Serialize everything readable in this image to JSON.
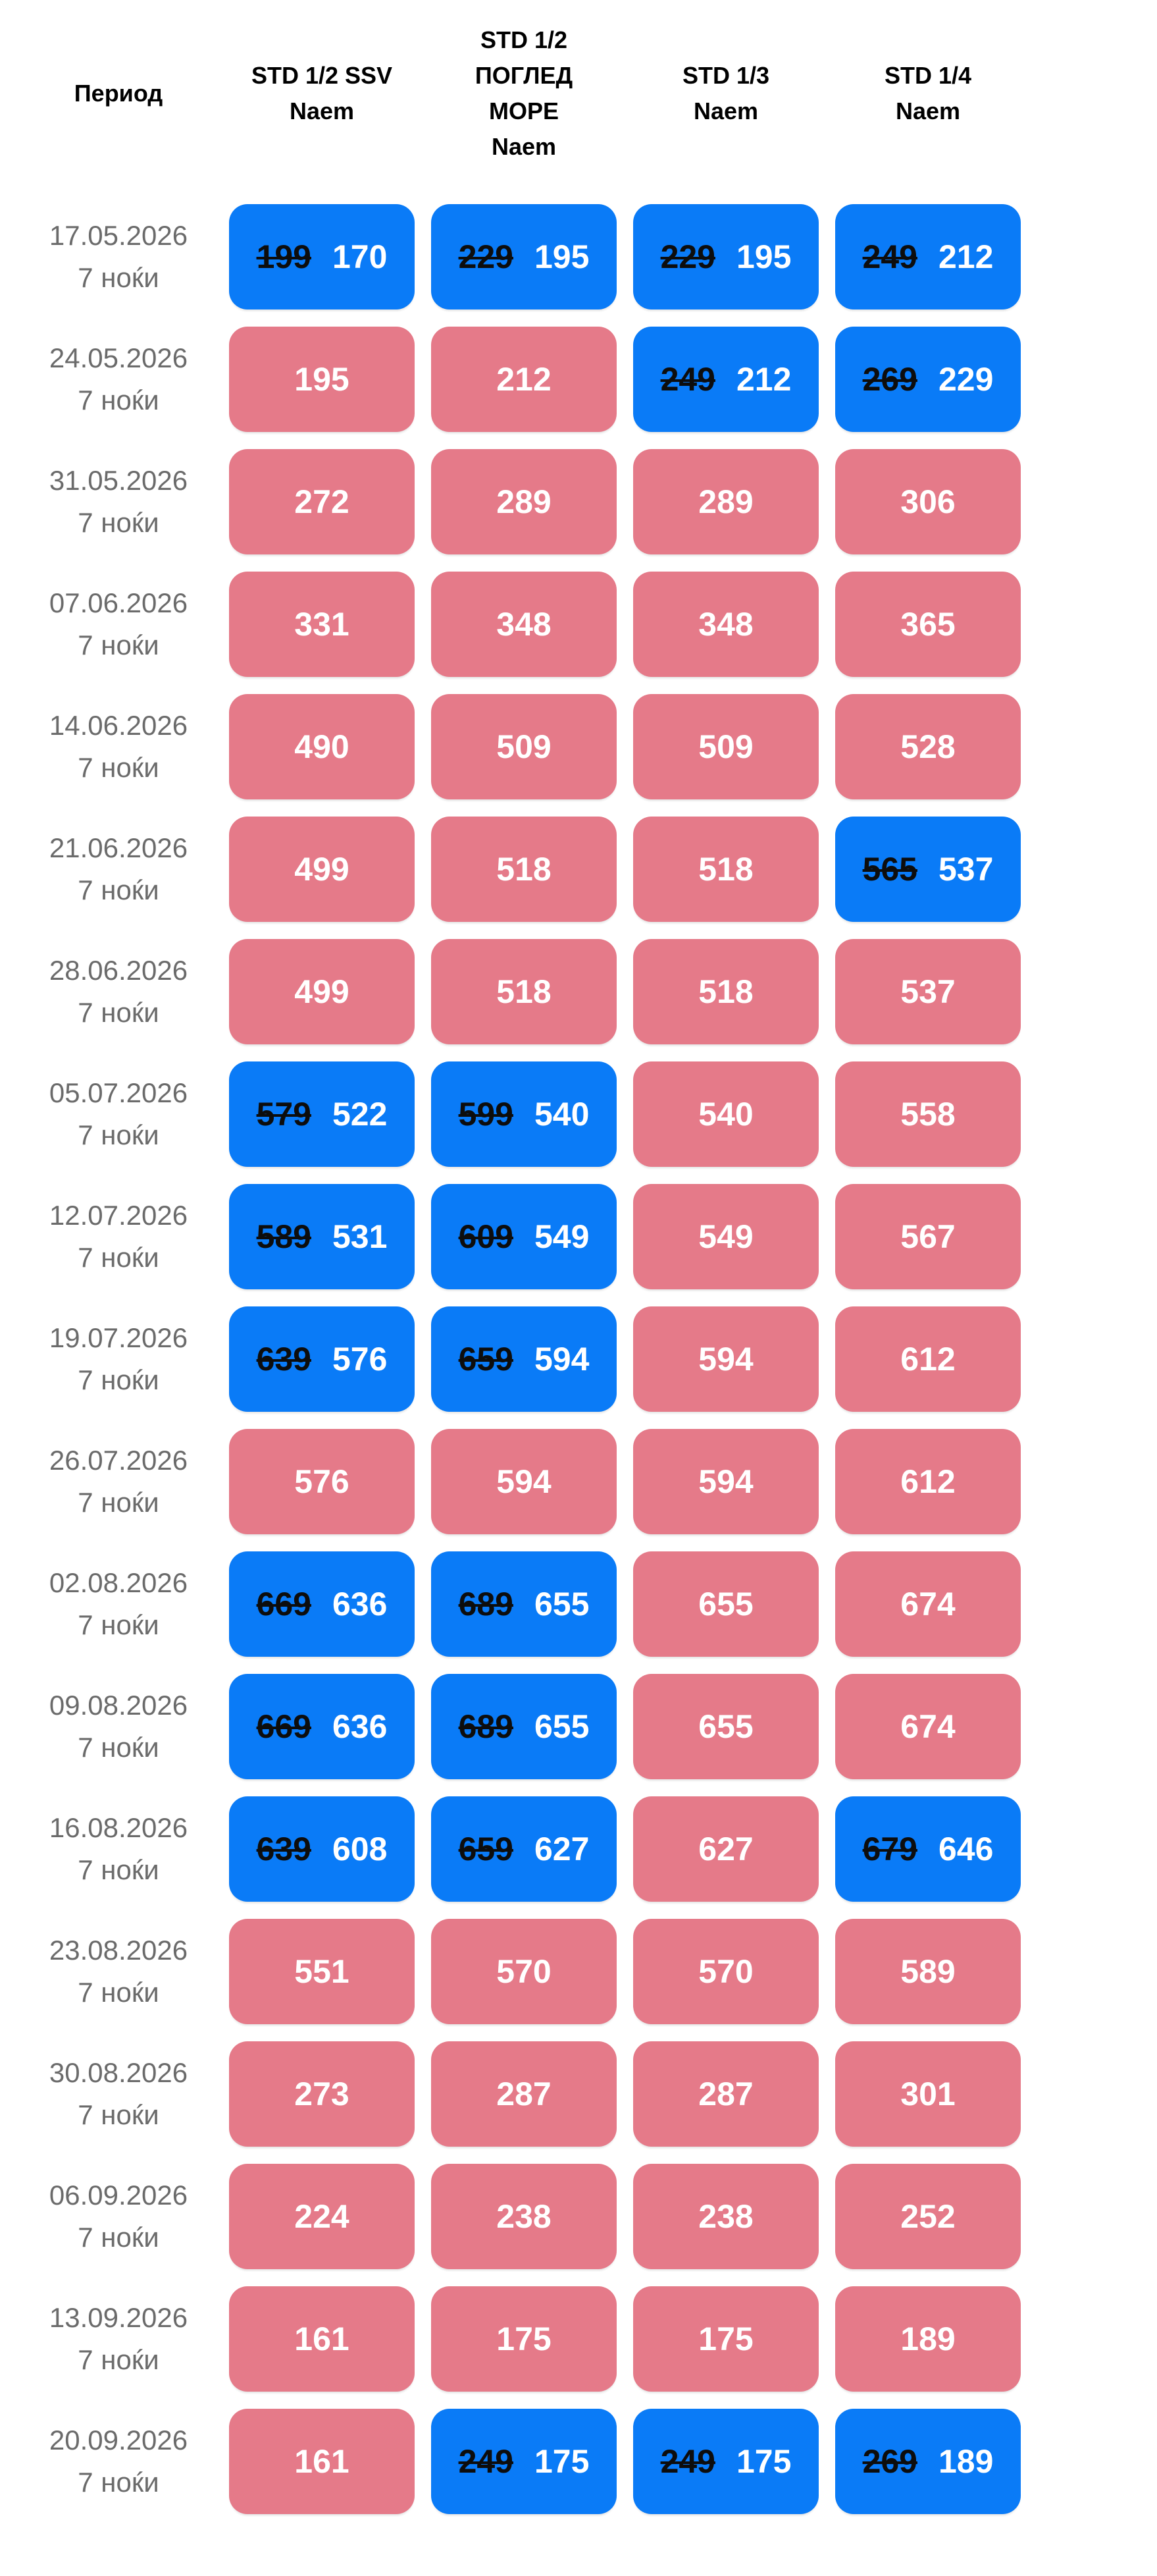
{
  "colors": {
    "promo_cell_bg": "#0a7bf7",
    "regular_cell_bg": "#e57a89",
    "price_text": "#ffffff",
    "old_price_text": "#0d0d0d",
    "date_text": "#6b6b6b",
    "header_text": "#000000",
    "page_bg": "#ffffff"
  },
  "header": {
    "period_label": "Период",
    "columns": [
      "STD 1/2 SSV\nNaem",
      "STD 1/2\nПОГЛЕД\nМОРЕ\nNaem",
      "STD 1/3\nNaem",
      "STD 1/4\nNaem"
    ]
  },
  "rows": [
    {
      "date": "17.05.2026",
      "nights": "7 ноќи",
      "cells": [
        {
          "old": 199,
          "price": 170
        },
        {
          "old": 229,
          "price": 195
        },
        {
          "old": 229,
          "price": 195
        },
        {
          "old": 249,
          "price": 212
        }
      ]
    },
    {
      "date": "24.05.2026",
      "nights": "7 ноќи",
      "cells": [
        {
          "price": 195
        },
        {
          "price": 212
        },
        {
          "old": 249,
          "price": 212
        },
        {
          "old": 269,
          "price": 229
        }
      ]
    },
    {
      "date": "31.05.2026",
      "nights": "7 ноќи",
      "cells": [
        {
          "price": 272
        },
        {
          "price": 289
        },
        {
          "price": 289
        },
        {
          "price": 306
        }
      ]
    },
    {
      "date": "07.06.2026",
      "nights": "7 ноќи",
      "cells": [
        {
          "price": 331
        },
        {
          "price": 348
        },
        {
          "price": 348
        },
        {
          "price": 365
        }
      ]
    },
    {
      "date": "14.06.2026",
      "nights": "7 ноќи",
      "cells": [
        {
          "price": 490
        },
        {
          "price": 509
        },
        {
          "price": 509
        },
        {
          "price": 528
        }
      ]
    },
    {
      "date": "21.06.2026",
      "nights": "7 ноќи",
      "cells": [
        {
          "price": 499
        },
        {
          "price": 518
        },
        {
          "price": 518
        },
        {
          "old": 565,
          "price": 537
        }
      ]
    },
    {
      "date": "28.06.2026",
      "nights": "7 ноќи",
      "cells": [
        {
          "price": 499
        },
        {
          "price": 518
        },
        {
          "price": 518
        },
        {
          "price": 537
        }
      ]
    },
    {
      "date": "05.07.2026",
      "nights": "7 ноќи",
      "cells": [
        {
          "old": 579,
          "price": 522
        },
        {
          "old": 599,
          "price": 540
        },
        {
          "price": 540
        },
        {
          "price": 558
        }
      ]
    },
    {
      "date": "12.07.2026",
      "nights": "7 ноќи",
      "cells": [
        {
          "old": 589,
          "price": 531
        },
        {
          "old": 609,
          "price": 549
        },
        {
          "price": 549
        },
        {
          "price": 567
        }
      ]
    },
    {
      "date": "19.07.2026",
      "nights": "7 ноќи",
      "cells": [
        {
          "old": 639,
          "price": 576
        },
        {
          "old": 659,
          "price": 594
        },
        {
          "price": 594
        },
        {
          "price": 612
        }
      ]
    },
    {
      "date": "26.07.2026",
      "nights": "7 ноќи",
      "cells": [
        {
          "price": 576
        },
        {
          "price": 594
        },
        {
          "price": 594
        },
        {
          "price": 612
        }
      ]
    },
    {
      "date": "02.08.2026",
      "nights": "7 ноќи",
      "cells": [
        {
          "old": 669,
          "price": 636
        },
        {
          "old": 689,
          "price": 655
        },
        {
          "price": 655
        },
        {
          "price": 674
        }
      ]
    },
    {
      "date": "09.08.2026",
      "nights": "7 ноќи",
      "cells": [
        {
          "old": 669,
          "price": 636
        },
        {
          "old": 689,
          "price": 655
        },
        {
          "price": 655
        },
        {
          "price": 674
        }
      ]
    },
    {
      "date": "16.08.2026",
      "nights": "7 ноќи",
      "cells": [
        {
          "old": 639,
          "price": 608
        },
        {
          "old": 659,
          "price": 627
        },
        {
          "price": 627
        },
        {
          "old": 679,
          "price": 646
        }
      ]
    },
    {
      "date": "23.08.2026",
      "nights": "7 ноќи",
      "cells": [
        {
          "price": 551
        },
        {
          "price": 570
        },
        {
          "price": 570
        },
        {
          "price": 589
        }
      ]
    },
    {
      "date": "30.08.2026",
      "nights": "7 ноќи",
      "cells": [
        {
          "price": 273
        },
        {
          "price": 287
        },
        {
          "price": 287
        },
        {
          "price": 301
        }
      ]
    },
    {
      "date": "06.09.2026",
      "nights": "7 ноќи",
      "cells": [
        {
          "price": 224
        },
        {
          "price": 238
        },
        {
          "price": 238
        },
        {
          "price": 252
        }
      ]
    },
    {
      "date": "13.09.2026",
      "nights": "7 ноќи",
      "cells": [
        {
          "price": 161
        },
        {
          "price": 175
        },
        {
          "price": 175
        },
        {
          "price": 189
        }
      ]
    },
    {
      "date": "20.09.2026",
      "nights": "7 ноќи",
      "cells": [
        {
          "price": 161
        },
        {
          "old": 249,
          "price": 175
        },
        {
          "old": 249,
          "price": 175
        },
        {
          "old": 269,
          "price": 189
        }
      ]
    }
  ]
}
